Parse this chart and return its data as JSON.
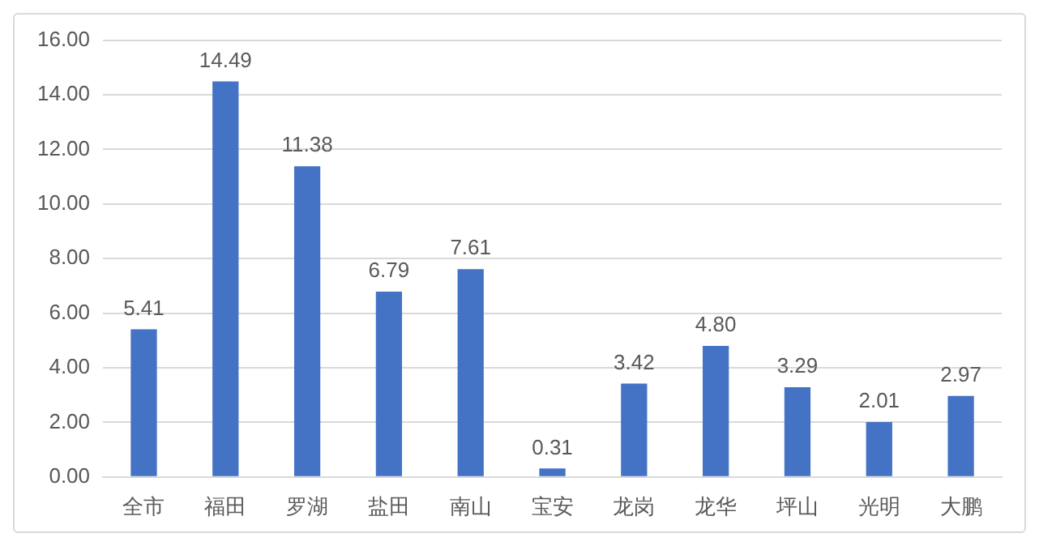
{
  "chart_data": {
    "type": "bar",
    "categories": [
      "全市",
      "福田",
      "罗湖",
      "盐田",
      "南山",
      "宝安",
      "龙岗",
      "龙华",
      "坪山",
      "光明",
      "大鹏"
    ],
    "values": [
      5.41,
      14.49,
      11.38,
      6.79,
      7.61,
      0.31,
      3.42,
      4.8,
      3.29,
      2.01,
      2.97
    ],
    "value_labels": [
      "5.41",
      "14.49",
      "11.38",
      "6.79",
      "7.61",
      "0.31",
      "3.42",
      "4.80",
      "3.29",
      "2.01",
      "2.97"
    ],
    "color": "#4472c4",
    "ylim": [
      0,
      16
    ],
    "yticks": [
      {
        "value": 0,
        "label": "0.00"
      },
      {
        "value": 2,
        "label": "2.00"
      },
      {
        "value": 4,
        "label": "4.00"
      },
      {
        "value": 6,
        "label": "6.00"
      },
      {
        "value": 8,
        "label": "8.00"
      },
      {
        "value": 10,
        "label": "10.00"
      },
      {
        "value": 12,
        "label": "12.00"
      },
      {
        "value": 14,
        "label": "14.00"
      },
      {
        "value": 16,
        "label": "16.00"
      }
    ],
    "grid": "y",
    "legend": false
  }
}
